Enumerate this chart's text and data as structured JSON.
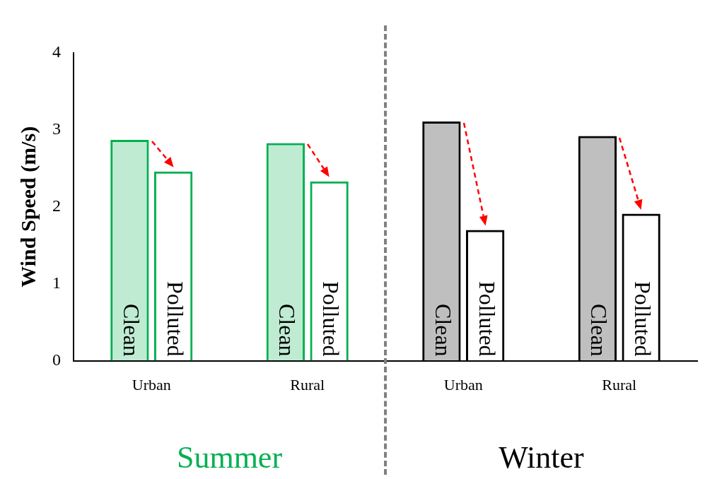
{
  "chart_data": {
    "type": "bar",
    "ylabel": "Wind Speed (m/s)",
    "categories": [
      "Urban",
      "Rural",
      "Urban",
      "Rural"
    ],
    "series": [
      {
        "name": "Clean",
        "colors": [
          "#00b050",
          "#00b050",
          "#000000",
          "#000000"
        ],
        "values": [
          2.87,
          2.83,
          3.11,
          2.92
        ]
      },
      {
        "name": "Polluted",
        "colors": [
          "#00b050",
          "#00b050",
          "#000000",
          "#000000"
        ],
        "values": [
          2.46,
          2.33,
          1.7,
          1.91
        ]
      }
    ],
    "ylim": [
      0,
      4
    ],
    "yticks": [
      0,
      1,
      2,
      3,
      4
    ],
    "grid": false,
    "legend": false,
    "annotations": [
      "Summer",
      "Winter"
    ]
  }
}
